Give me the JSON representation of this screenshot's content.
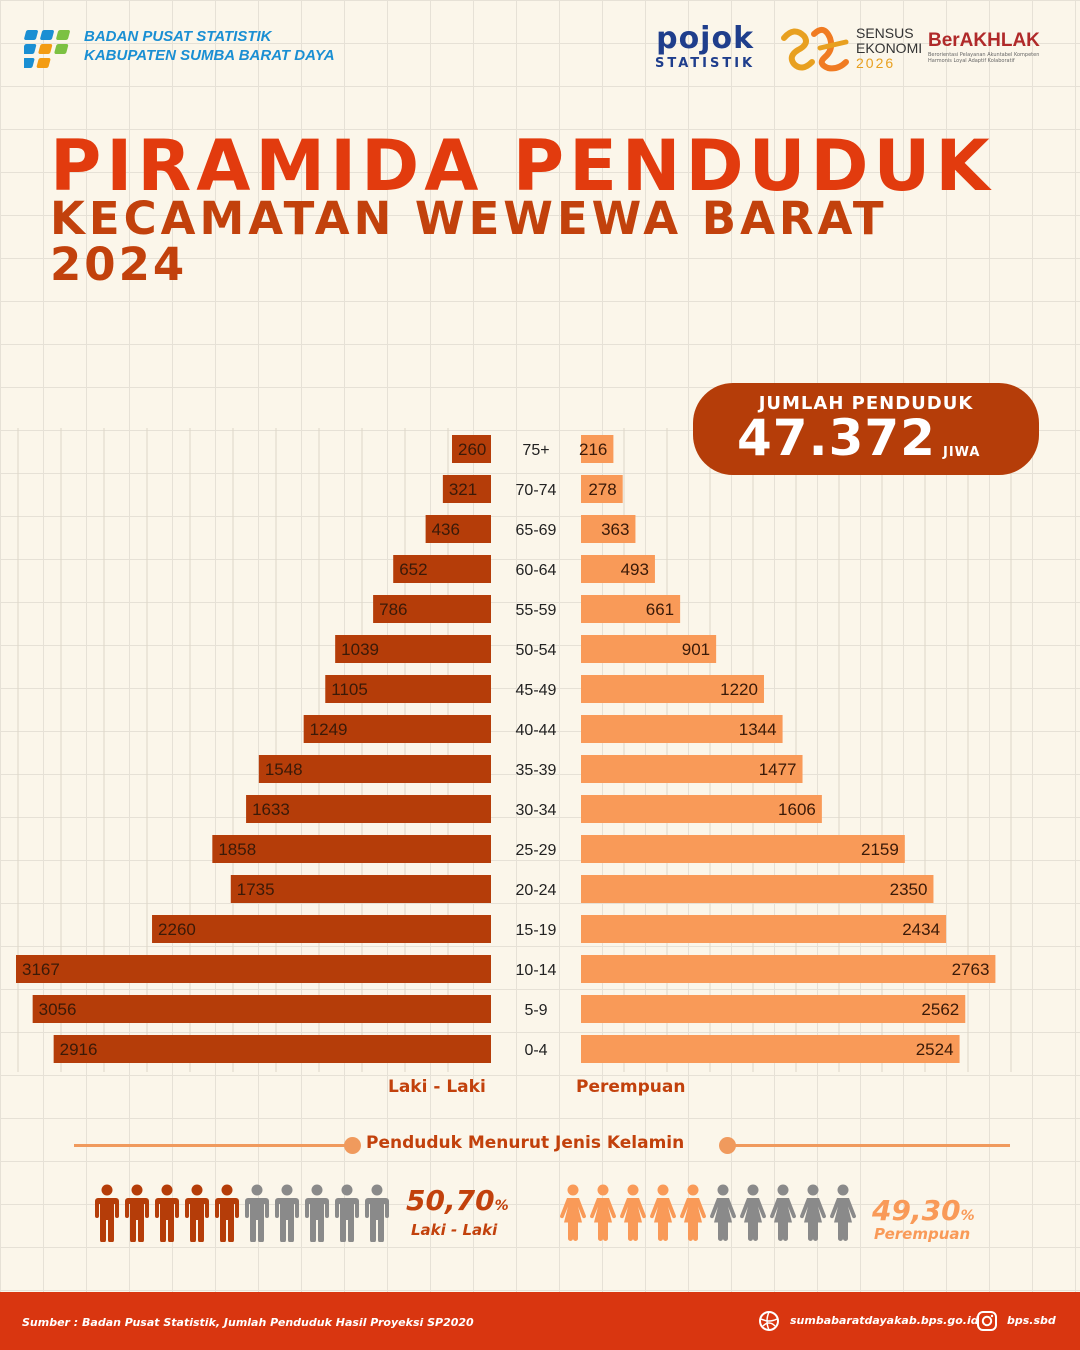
{
  "header": {
    "org_line1": "BADAN PUSAT STATISTIK",
    "org_line2": "KABUPATEN SUMBA BARAT DAYA",
    "pojok_word": "pojok",
    "pojok_sub": "STATISTIK",
    "se_line1": "SENSUS",
    "se_line2": "EKONOMI",
    "se_year": "2026",
    "berakhlak": "BerAKHLAK",
    "berakhlak_tagline": "Berorientasi Pelayanan Akuntabel Kompeten Harmonis Loyal Adaptif Kolaboratif"
  },
  "title": {
    "line1": "PIRAMIDA PENDUDUK",
    "line2": "KECAMATAN WEWEWA BARAT",
    "line3": "2024"
  },
  "total": {
    "label": "JUMLAH PENDUDUK",
    "value": "47.372",
    "unit": "JIWA"
  },
  "colors": {
    "male": "#b53d09",
    "female": "#f99a58",
    "title": "#e23b0e",
    "inactive_icon": "#8a8a8a"
  },
  "chart_data": {
    "type": "bar",
    "orientation": "horizontal-pyramid",
    "categories": [
      "75+",
      "70-74",
      "65-69",
      "60-64",
      "55-59",
      "50-54",
      "45-49",
      "40-44",
      "35-39",
      "30-34",
      "25-29",
      "20-24",
      "15-19",
      "10-14",
      "5-9",
      "0-4"
    ],
    "series": [
      {
        "name": "Laki - Laki",
        "values": [
          260,
          321,
          436,
          652,
          786,
          1039,
          1105,
          1249,
          1548,
          1633,
          1858,
          1735,
          2260,
          3167,
          3056,
          2916
        ]
      },
      {
        "name": "Perempuan",
        "values": [
          216,
          278,
          363,
          493,
          661,
          901,
          1220,
          1344,
          1477,
          1606,
          2159,
          2350,
          2434,
          2763,
          2562,
          2524
        ]
      }
    ],
    "xlabel_left": "Laki - Laki",
    "xlabel_right": "Perempuan",
    "grid": true
  },
  "gender": {
    "heading": "Penduduk Menurut Jenis Kelamin",
    "male_pct": "50,70",
    "male_pct_fill": 0.507,
    "male_label": "Laki - Laki",
    "female_pct": "49,30",
    "female_pct_fill": 0.493,
    "female_label": "Perempuan",
    "pct_symbol": "%",
    "icons_per_group": 10
  },
  "footer": {
    "source": "Sumber : Badan Pusat Statistik, Jumlah Penduduk Hasil Proyeksi SP2020",
    "website": "sumbabaratdayakab.bps.go.id",
    "instagram": "bps.sbd"
  }
}
